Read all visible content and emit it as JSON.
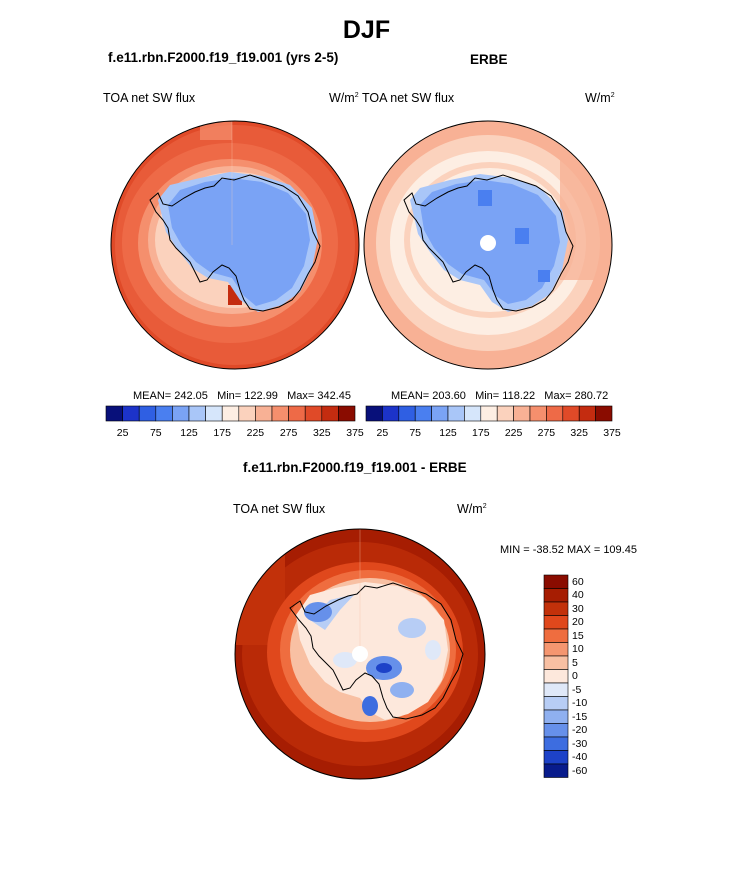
{
  "title": "DJF",
  "panels": [
    {
      "id": "model",
      "header": "f.e11.rbn.F2000.f19_f19.001 (yrs 2-5)",
      "left_label": "TOA net SW flux",
      "units": "W/m",
      "units_sup": "2",
      "stats": {
        "mean": "MEAN= 242.05",
        "min": "Min= 122.99",
        "max": "Max= 342.45"
      },
      "colorbar_ticks": [
        "25",
        "75",
        "125",
        "175",
        "225",
        "275",
        "325",
        "375"
      ]
    },
    {
      "id": "obs",
      "header": "ERBE",
      "left_label": "TOA net SW flux",
      "units": "W/m",
      "units_sup": "2",
      "stats": {
        "mean": "MEAN= 203.60",
        "min": "Min= 118.22",
        "max": "Max= 280.72"
      },
      "colorbar_ticks": [
        "25",
        "75",
        "125",
        "175",
        "225",
        "275",
        "325",
        "375"
      ]
    }
  ],
  "diff": {
    "header": "f.e11.rbn.F2000.f19_f19.001 - ERBE",
    "left_label": "TOA net SW flux",
    "units": "W/m",
    "units_sup": "2",
    "minmax": "MIN = -38.52  MAX = 109.45",
    "colorbar_labels": [
      "60",
      "40",
      "30",
      "20",
      "15",
      "10",
      "5",
      "0",
      "-5",
      "-10",
      "-15",
      "-20",
      "-30",
      "-40",
      "-60"
    ]
  },
  "colors": {
    "abs_scale": [
      "#08107a",
      "#1c33c9",
      "#2f5fe3",
      "#4a7ff0",
      "#7aa3f5",
      "#a9c6f8",
      "#d6e6fb",
      "#fdeee3",
      "#fbd2bd",
      "#f8b195",
      "#f58f6d",
      "#ee6a47",
      "#e04a28",
      "#c42c10",
      "#8a0c00"
    ],
    "diff_scale": [
      "#8a0c00",
      "#a61d02",
      "#c2310a",
      "#e0481c",
      "#ef6d3f",
      "#f59670",
      "#f8c0a3",
      "#fde8dc",
      "#dfe8f8",
      "#b7cdf5",
      "#8fb0f0",
      "#6690ea",
      "#3d6de0",
      "#1d42c8",
      "#081b8c"
    ],
    "land_ice": "#7aa3f5",
    "coast": "#000000"
  },
  "chart_data": {
    "type": "heatmap",
    "projection": "south polar stereographic",
    "season": "DJF",
    "variable": "TOA net SW flux",
    "units": "W/m2",
    "maps": [
      {
        "name": "f.e11.rbn.F2000.f19_f19.001 (yrs 2-5)",
        "mean": 242.05,
        "min": 122.99,
        "max": 342.45
      },
      {
        "name": "ERBE",
        "mean": 203.6,
        "min": 118.22,
        "max": 280.72
      },
      {
        "name": "f.e11.rbn.F2000.f19_f19.001 - ERBE",
        "min": -38.52,
        "max": 109.45
      }
    ],
    "abs_levels": [
      25,
      50,
      75,
      100,
      125,
      150,
      175,
      200,
      225,
      250,
      275,
      300,
      325,
      350,
      375
    ],
    "diff_levels": [
      -60,
      -40,
      -30,
      -20,
      -15,
      -10,
      -5,
      0,
      5,
      10,
      15,
      20,
      30,
      40,
      60
    ]
  }
}
